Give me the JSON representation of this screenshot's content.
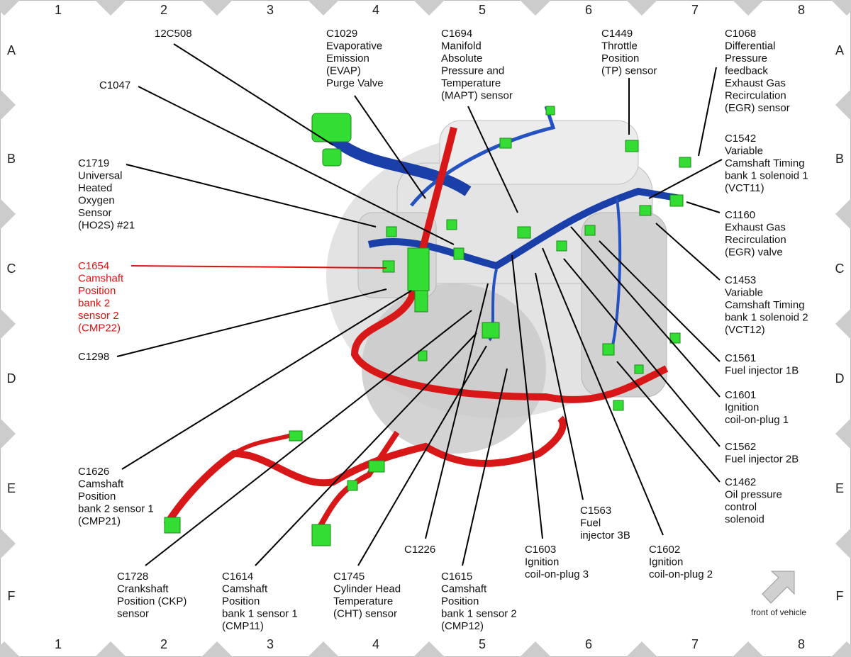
{
  "grid": {
    "columns": [
      "1",
      "2",
      "3",
      "4",
      "5",
      "6",
      "7",
      "8"
    ],
    "rows": [
      "A",
      "B",
      "C",
      "D",
      "E",
      "F"
    ]
  },
  "callouts": [
    {
      "lines": [
        "12C508"
      ]
    },
    {
      "lines": [
        "C1029",
        "Evaporative",
        "Emission",
        "(EVAP)",
        "Purge Valve"
      ]
    },
    {
      "lines": [
        "C1694",
        "Manifold",
        "Absolute",
        "Pressure and",
        "Temperature",
        "(MAPT) sensor"
      ]
    },
    {
      "lines": [
        "C1449",
        "Throttle",
        "Position",
        "(TP) sensor"
      ]
    },
    {
      "lines": [
        "C1068",
        "Differential",
        "Pressure",
        "feedback",
        "Exhaust Gas",
        "Recirculation",
        "(EGR) sensor"
      ]
    },
    {
      "lines": [
        "C1047"
      ]
    },
    {
      "lines": [
        "C1542",
        "Variable",
        "Camshaft Timing",
        "bank 1 solenoid 1",
        "(VCT11)"
      ]
    },
    {
      "lines": [
        "C1719",
        "Universal",
        "Heated",
        "Oxygen",
        "Sensor",
        "(HO2S) #21"
      ]
    },
    {
      "lines": [
        "C1160",
        "Exhaust Gas",
        "Recirculation",
        "(EGR) valve"
      ]
    },
    {
      "lines": [
        "C1654",
        "Camshaft",
        "Position",
        "bank 2",
        "sensor 2",
        "(CMP22)"
      ],
      "highlight": true
    },
    {
      "lines": [
        "C1453",
        "Variable",
        "Camshaft Timing",
        "bank 1 solenoid 2",
        "(VCT12)"
      ]
    },
    {
      "lines": [
        "C1298"
      ]
    },
    {
      "lines": [
        "C1561",
        "Fuel injector 1B"
      ]
    },
    {
      "lines": [
        "C1601",
        "Ignition",
        "coil-on-plug 1"
      ]
    },
    {
      "lines": [
        "C1626",
        "Camshaft",
        "Position",
        "bank 2 sensor 1",
        "(CMP21)"
      ]
    },
    {
      "lines": [
        "C1562",
        "Fuel injector 2B"
      ]
    },
    {
      "lines": [
        "C1462",
        "Oil pressure",
        "control",
        "solenoid"
      ]
    },
    {
      "lines": [
        "C1563",
        "Fuel",
        "injector 3B"
      ]
    },
    {
      "lines": [
        "C1226"
      ]
    },
    {
      "lines": [
        "C1603",
        "Ignition",
        "coil-on-plug 3"
      ]
    },
    {
      "lines": [
        "C1602",
        "Ignition",
        "coil-on-plug 2"
      ]
    },
    {
      "lines": [
        "C1728",
        "Crankshaft",
        "Position (CKP)",
        "sensor"
      ]
    },
    {
      "lines": [
        "C1614",
        "Camshaft",
        "Position",
        "bank 1 sensor 1",
        "(CMP11)"
      ]
    },
    {
      "lines": [
        "C1745",
        "Cylinder Head",
        "Temperature",
        "(CHT) sensor"
      ]
    },
    {
      "lines": [
        "C1615",
        "Camshaft",
        "Position",
        "bank 1 sensor 2",
        "(CMP12)"
      ]
    }
  ],
  "note": "front of vehicle"
}
